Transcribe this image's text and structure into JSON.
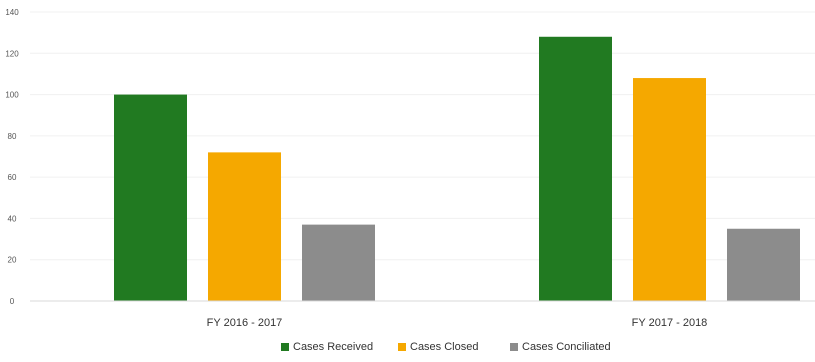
{
  "chart_data": {
    "type": "bar",
    "title": "",
    "xlabel": "",
    "ylabel": "",
    "categories": [
      "FY 2016 - 2017",
      "FY 2017 - 2018"
    ],
    "series": [
      {
        "name": "Cases Received",
        "color": "#217a21",
        "values": [
          100,
          128
        ]
      },
      {
        "name": "Cases Closed",
        "color": "#f5a800",
        "values": [
          72,
          108
        ]
      },
      {
        "name": "Cases Conciliated",
        "color": "#8c8c8c",
        "values": [
          37,
          35
        ]
      }
    ],
    "ylim": [
      0,
      140
    ],
    "yticks": [
      0,
      20,
      40,
      60,
      80,
      100,
      120,
      140
    ],
    "ytick_labels": [
      "0",
      "20",
      "40",
      "60",
      "80",
      "100",
      "120",
      "140"
    ],
    "grid": true,
    "legend_position": "bottom-center"
  }
}
